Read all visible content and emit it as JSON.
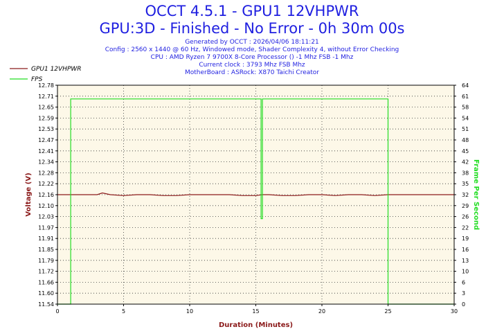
{
  "header": {
    "title": "OCCT 4.5.1 - GPU1 12VHPWR",
    "subtitle": "GPU:3D - Finished - No Error - 0h 30m 00s",
    "info_lines": [
      "Generated by OCCT : 2026/04/06 18:11:21",
      "Config : 2560 x 1440 @ 60 Hz, Windowed mode, Shader Complexity 4, without Error Checking",
      "CPU : AMD Ryzen 7 9700X 8-Core Processor () -1 Mhz FSB -1 Mhz",
      "Current clock : 3793 Mhz FSB  Mhz",
      "MotherBoard : ASRock: X870 Taichi Creator"
    ]
  },
  "colors": {
    "voltage": "#8b1a1a",
    "fps": "#22dd22",
    "plot_bg": "#fdf8e8",
    "title": "#1f1fe0",
    "grid": "#333333"
  },
  "chart_data": {
    "type": "line",
    "xlabel": "Duration (Minutes)",
    "ylabel": "Voltage (V)",
    "y2label": "Frame Per Second",
    "xlim": [
      0,
      30
    ],
    "ylim": [
      11.54,
      12.78
    ],
    "y2lim": [
      0,
      64
    ],
    "x_ticks": [
      0,
      5,
      10,
      15,
      20,
      25,
      30
    ],
    "y_ticks": [
      "11.54",
      "11.60",
      "11.66",
      "11.72",
      "11.79",
      "11.85",
      "11.91",
      "11.97",
      "12.03",
      "12.10",
      "12.16",
      "12.22",
      "12.28",
      "12.34",
      "12.41",
      "12.47",
      "12.53",
      "12.59",
      "12.65",
      "12.71",
      "12.78"
    ],
    "y2_ticks": [
      0,
      3,
      6,
      10,
      13,
      16,
      19,
      22,
      26,
      29,
      32,
      35,
      38,
      42,
      45,
      48,
      51,
      54,
      58,
      61,
      64
    ],
    "grid": true,
    "legend_position": "top-left",
    "series": [
      {
        "name": "GPU1 12VHPWR",
        "axis": "left",
        "x": [
          0,
          1,
          2,
          3,
          3.4,
          4,
          5,
          6,
          7,
          8,
          9,
          10,
          11,
          12,
          13,
          14,
          15,
          15.5,
          16,
          17,
          18,
          19,
          20,
          21,
          22,
          23,
          24,
          25,
          26,
          27,
          28,
          29,
          30
        ],
        "values": [
          12.16,
          12.16,
          12.16,
          12.16,
          12.17,
          12.16,
          12.155,
          12.16,
          12.16,
          12.155,
          12.155,
          12.16,
          12.16,
          12.16,
          12.16,
          12.155,
          12.155,
          12.16,
          12.16,
          12.155,
          12.155,
          12.16,
          12.16,
          12.155,
          12.16,
          12.16,
          12.155,
          12.16,
          12.16,
          12.16,
          12.16,
          12.16,
          12.16
        ]
      },
      {
        "name": "FPS",
        "axis": "right",
        "x": [
          0,
          1.0,
          1.0,
          1.1,
          1.1,
          15.4,
          15.4,
          15.5,
          15.5,
          25.0,
          25.0,
          30
        ],
        "values": [
          0,
          0,
          60,
          60,
          60,
          60,
          25,
          25,
          60,
          60,
          0,
          0
        ]
      }
    ]
  }
}
